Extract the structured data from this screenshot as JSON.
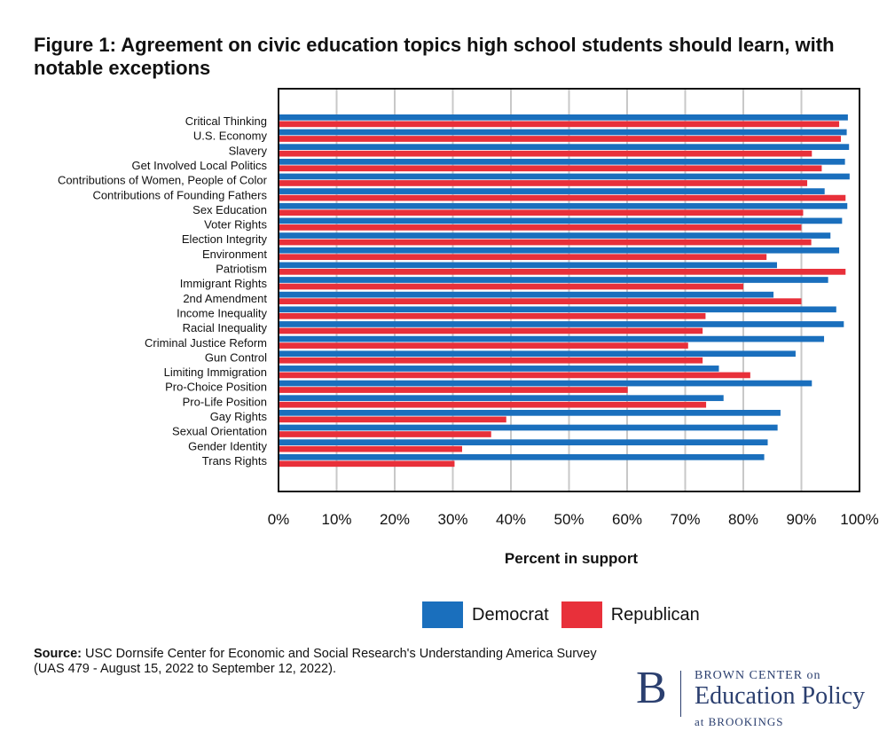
{
  "chart_data": {
    "type": "bar",
    "orientation": "horizontal",
    "title": "Figure 1: Agreement on civic education topics high school students should learn, with notable exceptions",
    "xlabel": "Percent in support",
    "ylabel": "",
    "xlim": [
      0,
      100
    ],
    "x_ticks": [
      "0%",
      "10%",
      "20%",
      "30%",
      "40%",
      "50%",
      "60%",
      "70%",
      "80%",
      "90%",
      "100%"
    ],
    "grid": true,
    "legend_position": "bottom",
    "categories": [
      "Critical Thinking",
      "U.S. Economy",
      "Slavery",
      "Get Involved Local Politics",
      "Contributions of Women, People of Color",
      "Contributions of Founding Fathers",
      "Sex Education",
      "Voter Rights",
      "Election Integrity",
      "Environment",
      "Patriotism",
      "Immigrant Rights",
      "2nd Amendment",
      "Income Inequality",
      "Racial Inequality",
      "Criminal Justice Reform",
      "Gun Control",
      "Limiting Immigration",
      "Pro-Choice Position",
      "Pro-Life Position",
      "Gay Rights",
      "Sexual Orientation",
      "Gender Identity",
      "Trans Rights"
    ],
    "series": [
      {
        "name": "Democrat",
        "color": "#1a6fbd",
        "values": [
          98,
          97.8,
          98.2,
          97.5,
          98.3,
          94,
          97.9,
          97,
          95,
          96.5,
          85.8,
          94.6,
          85.2,
          96,
          97.3,
          93.9,
          89,
          75.8,
          91.8,
          76.6,
          86.4,
          85.9,
          84.2,
          83.6
        ]
      },
      {
        "name": "Republican",
        "color": "#e8303a",
        "values": [
          96.5,
          96.8,
          91.8,
          93.5,
          91,
          97.6,
          90.3,
          90,
          91.7,
          84,
          97.6,
          80,
          90,
          73.5,
          73,
          70.5,
          73,
          81.2,
          60.1,
          73.6,
          39.2,
          36.6,
          31.6,
          30.3
        ]
      }
    ]
  },
  "source": {
    "label": "Source:",
    "text": "USC Dornsife Center for Economic and Social Research's Understanding America Survey (UAS 479 - August 15, 2022 to September 12, 2022)."
  },
  "logo": {
    "letter": "B",
    "line1": "BROWN CENTER on",
    "line2": "Education Policy",
    "line3": "at BROOKINGS"
  }
}
